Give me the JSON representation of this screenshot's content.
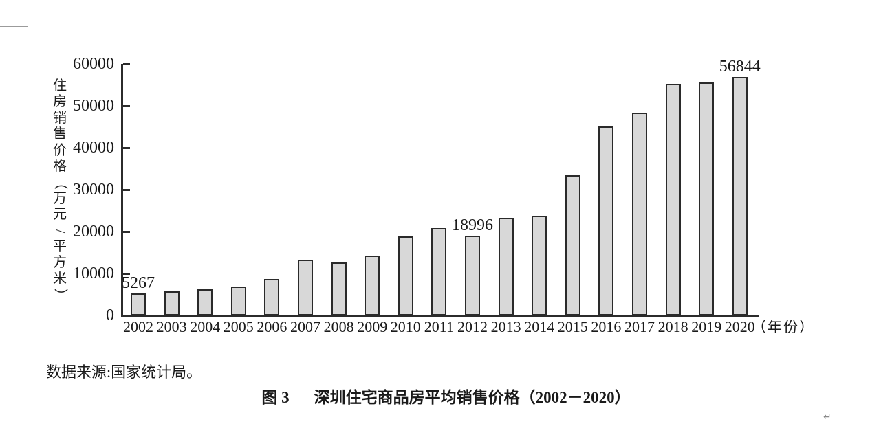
{
  "figure": {
    "source_note": "数据来源:国家统计局。",
    "caption_prefix": "图 3",
    "caption_title": "深圳住宅商品房平均销售价格（2002－2020）",
    "return_mark": "↵"
  },
  "chart_data": {
    "type": "bar",
    "title": "图3 深圳住宅商品房平均销售价格（2002－2020）",
    "ylabel": "住房销售价格（万元/平方米）",
    "xlabel_suffix": "（年份）",
    "categories": [
      "2002",
      "2003",
      "2004",
      "2005",
      "2006",
      "2007",
      "2008",
      "2009",
      "2010",
      "2011",
      "2012",
      "2013",
      "2014",
      "2015",
      "2016",
      "2017",
      "2018",
      "2019",
      "2020"
    ],
    "values": [
      5267,
      5680,
      6300,
      6900,
      8700,
      13200,
      12700,
      14300,
      18800,
      20900,
      18996,
      23200,
      23800,
      33500,
      45100,
      48300,
      55200,
      55500,
      56844
    ],
    "value_labels": {
      "2002": "5267",
      "2012": "18996",
      "2020": "56844"
    },
    "yticks": [
      0,
      10000,
      20000,
      30000,
      40000,
      50000,
      60000
    ],
    "ylim": [
      0,
      60000
    ],
    "grid": false,
    "legend": false,
    "bar_fill": "#d8d8d8",
    "bar_stroke": "#2a2a2a",
    "axis_color": "#2b2b2b",
    "text_color": "#1a1a1a"
  }
}
